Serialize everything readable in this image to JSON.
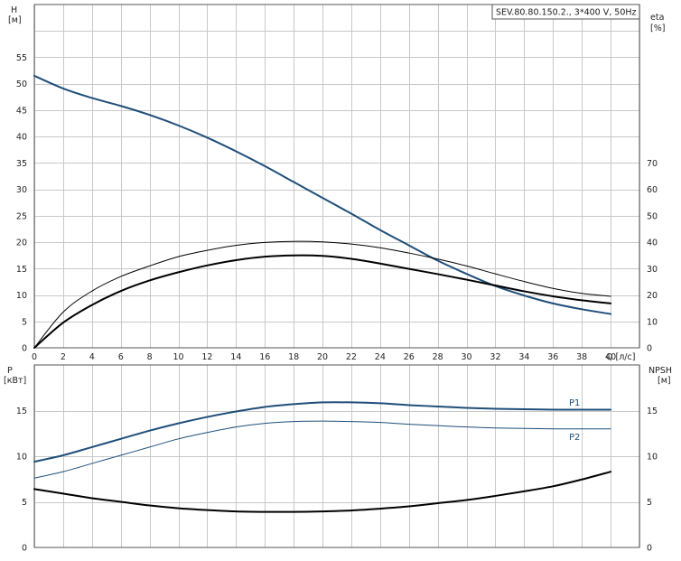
{
  "chart_data": [
    {
      "type": "line",
      "title": "SEV.80.80.150.2., 3*400 V, 50Hz",
      "x_axis": {
        "label": "Q [л/с]",
        "range": [
          0,
          42
        ],
        "ticks": [
          0,
          2,
          4,
          6,
          8,
          10,
          12,
          14,
          16,
          18,
          20,
          22,
          24,
          26,
          28,
          30,
          32,
          34,
          36,
          38,
          40
        ]
      },
      "y_left": {
        "label": "H",
        "unit": "[м]",
        "range": [
          0,
          65
        ],
        "ticks": [
          0,
          5,
          10,
          15,
          20,
          25,
          30,
          35,
          40,
          45,
          50,
          55
        ]
      },
      "y_right": {
        "label": "eta",
        "unit": "[%]",
        "range": [
          0,
          130
        ],
        "ticks": [
          0,
          10,
          20,
          30,
          40,
          50,
          60,
          70
        ]
      },
      "grid": true,
      "series": [
        {
          "axis": "left",
          "color": "#1f4e79",
          "width": 2,
          "x": [
            0,
            2,
            4,
            6,
            8,
            10,
            12,
            14,
            16,
            18,
            20,
            22,
            24,
            26,
            28,
            30,
            32,
            34,
            36,
            38,
            40
          ],
          "y": [
            51.5,
            49.1,
            47.3,
            45.8,
            44.1,
            42.1,
            39.8,
            37.2,
            34.4,
            31.4,
            28.4,
            25.4,
            22.3,
            19.4,
            16.5,
            14.0,
            11.7,
            9.9,
            8.4,
            7.3,
            6.4
          ]
        },
        {
          "axis": "right",
          "color": "#000000",
          "width": 1,
          "x": [
            0,
            2,
            4,
            6,
            8,
            10,
            12,
            14,
            16,
            18,
            20,
            22,
            24,
            26,
            28,
            30,
            32,
            34,
            36,
            38,
            40
          ],
          "y": [
            0,
            13.5,
            21.5,
            27.0,
            31.0,
            34.5,
            36.9,
            38.8,
            39.9,
            40.3,
            40.1,
            39.3,
            37.9,
            35.9,
            33.6,
            31.0,
            28.0,
            25.1,
            22.5,
            20.6,
            19.5
          ]
        },
        {
          "axis": "right",
          "color": "#000000",
          "width": 2,
          "x": [
            0,
            2,
            4,
            6,
            8,
            10,
            12,
            14,
            16,
            18,
            20,
            22,
            24,
            26,
            28,
            30,
            32,
            34,
            36,
            38,
            40
          ],
          "y": [
            0,
            9.5,
            16.2,
            21.5,
            25.5,
            28.6,
            31.2,
            33.2,
            34.5,
            35.0,
            34.8,
            33.7,
            31.9,
            29.9,
            27.9,
            25.8,
            23.6,
            21.4,
            19.5,
            18.0,
            16.8
          ]
        }
      ]
    },
    {
      "type": "line",
      "x_axis": {
        "range": [
          0,
          42
        ],
        "ticks": [
          0,
          2,
          4,
          6,
          8,
          10,
          12,
          14,
          16,
          18,
          20,
          22,
          24,
          26,
          28,
          30,
          32,
          34,
          36,
          38,
          40
        ]
      },
      "y_left": {
        "label": "P",
        "unit": "[кВт]",
        "range": [
          0,
          20
        ],
        "ticks": [
          0,
          5,
          10,
          15
        ]
      },
      "y_right": {
        "label": "NPSH",
        "unit": "[м]",
        "range": [
          0,
          20
        ],
        "ticks": [
          0,
          5,
          10,
          15
        ]
      },
      "grid": true,
      "series": [
        {
          "name": "P1",
          "axis": "left",
          "color": "#1f4e79",
          "width": 2,
          "x": [
            0,
            2,
            4,
            6,
            8,
            10,
            12,
            14,
            16,
            18,
            20,
            22,
            24,
            26,
            28,
            30,
            32,
            34,
            36,
            38,
            40
          ],
          "y": [
            9.4,
            10.1,
            11.0,
            11.9,
            12.8,
            13.6,
            14.3,
            14.9,
            15.4,
            15.7,
            15.9,
            15.9,
            15.8,
            15.6,
            15.45,
            15.3,
            15.2,
            15.15,
            15.1,
            15.1,
            15.1
          ]
        },
        {
          "name": "P2",
          "axis": "left",
          "color": "#1f4e79",
          "width": 1,
          "x": [
            0,
            2,
            4,
            6,
            8,
            10,
            12,
            14,
            16,
            18,
            20,
            22,
            24,
            26,
            28,
            30,
            32,
            34,
            36,
            38,
            40
          ],
          "y": [
            7.6,
            8.3,
            9.2,
            10.1,
            11.0,
            11.9,
            12.6,
            13.2,
            13.6,
            13.8,
            13.85,
            13.8,
            13.7,
            13.5,
            13.35,
            13.2,
            13.1,
            13.05,
            13.0,
            13.0,
            13.0
          ]
        },
        {
          "axis": "right",
          "color": "#000000",
          "width": 2,
          "x": [
            0,
            2,
            4,
            6,
            8,
            10,
            12,
            14,
            16,
            18,
            20,
            22,
            24,
            26,
            28,
            30,
            32,
            34,
            36,
            38,
            40
          ],
          "y": [
            6.4,
            5.9,
            5.4,
            5.0,
            4.6,
            4.3,
            4.1,
            3.95,
            3.9,
            3.9,
            3.95,
            4.05,
            4.25,
            4.5,
            4.85,
            5.2,
            5.65,
            6.15,
            6.7,
            7.45,
            8.3
          ]
        }
      ],
      "legend_labels": [
        "P1",
        "P2"
      ]
    }
  ]
}
